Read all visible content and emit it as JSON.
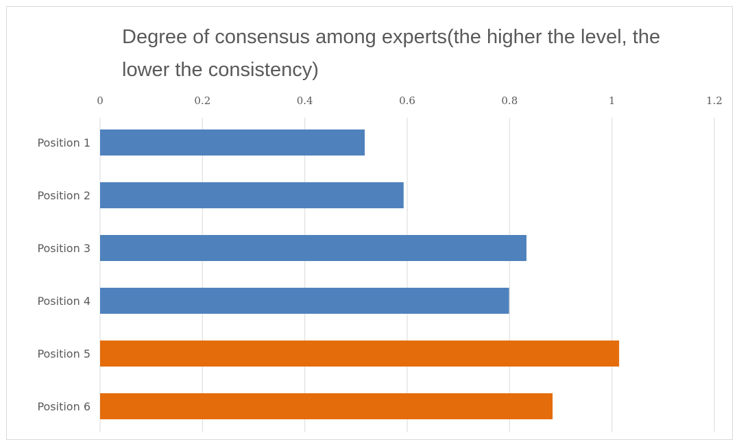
{
  "chart_data": {
    "type": "bar",
    "orientation": "horizontal",
    "title": "Degree of consensus among experts(the higher the level, the lower the consistency)",
    "xlabel": "",
    "ylabel": "",
    "xlim": [
      0,
      1.2
    ],
    "ticks": [
      "0",
      "0.2",
      "0.4",
      "0.6",
      "0.8",
      "1",
      "1.2"
    ],
    "tick_values": [
      0,
      0.2,
      0.4,
      0.6,
      0.8,
      1.0,
      1.2
    ],
    "x_axis_position": "top",
    "grid": true,
    "categories": [
      "Position 1",
      "Position 2",
      "Position 3",
      "Position 4",
      "Position 5",
      "Position 6"
    ],
    "values": [
      0.517,
      0.593,
      0.833,
      0.799,
      1.014,
      0.884
    ],
    "colors": [
      "#4f81bd",
      "#4f81bd",
      "#4f81bd",
      "#4f81bd",
      "#e46c0a",
      "#e46c0a"
    ]
  }
}
